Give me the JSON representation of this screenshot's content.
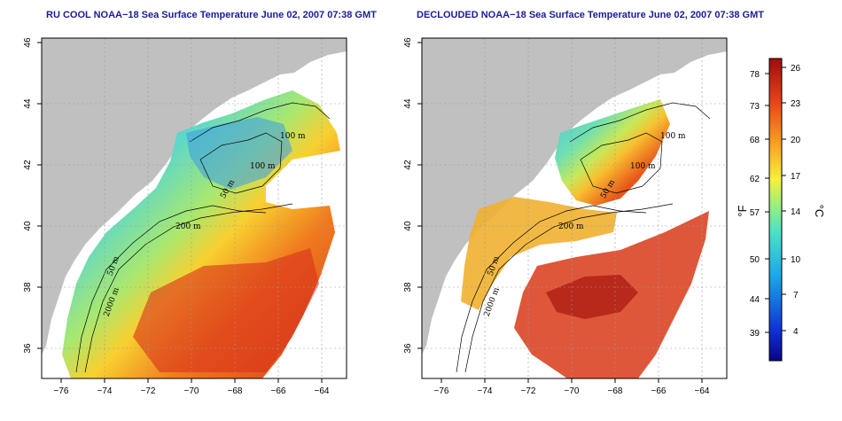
{
  "maps": [
    {
      "id": "left",
      "title": "RU COOL NOAA−18 Sea Surface Temperature June 02, 2007 07:38 GMT",
      "contour_labels": [
        "100 m",
        "100 m",
        "50 m",
        "200 m",
        "50 m",
        "2000 m"
      ]
    },
    {
      "id": "right",
      "title": "DECLOUDED NOAA−18 Sea Surface Temperature June 02, 2007 07:38 GMT",
      "contour_labels": [
        "100 m",
        "100 m",
        "50 m",
        "200 m",
        "50 m",
        "2000 m"
      ]
    }
  ],
  "axes": {
    "x_ticks": [
      "−76",
      "−74",
      "−72",
      "−70",
      "−68",
      "−66",
      "−64"
    ],
    "y_ticks": [
      "36",
      "38",
      "40",
      "42",
      "44",
      "46"
    ]
  },
  "colorbar": {
    "fahrenheit_unit": "°F",
    "celsius_unit": "°C",
    "fahrenheit_ticks": [
      "78",
      "73",
      "68",
      "62",
      "57",
      "50",
      "44",
      "39"
    ],
    "celsius_ticks": [
      "26",
      "23",
      "20",
      "17",
      "14",
      "10",
      "7",
      "4"
    ],
    "colors": [
      "#08048a",
      "#1030d8",
      "#19a8e8",
      "#48e0c8",
      "#9ef07a",
      "#f6f03a",
      "#f8a020",
      "#e8401a",
      "#a00c0c"
    ]
  },
  "colors": {
    "land": "#c0c0c0",
    "grid": "#9a9a9a",
    "title": "#1b1b9a"
  }
}
